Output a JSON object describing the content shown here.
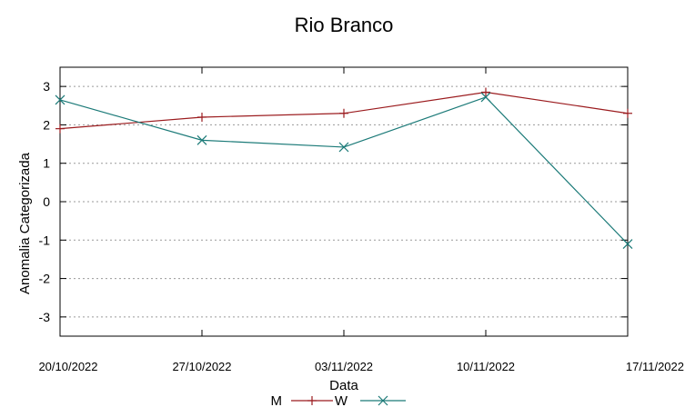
{
  "chart_data": {
    "type": "line",
    "title": "Rio Branco",
    "xlabel": "Data",
    "ylabel": "Anomalia Categorizada",
    "ylim": [
      -3.5,
      3.5
    ],
    "yticks": [
      "3",
      "2",
      "1",
      "0",
      "-1",
      "-2",
      "-3"
    ],
    "x": [
      "20/10/2022",
      "27/10/2022",
      "03/11/2022",
      "10/11/2022",
      "17/11/2022"
    ],
    "grid": true,
    "legend_position": "bottom",
    "series": [
      {
        "name": "M",
        "color": "#9b1b1e",
        "marker": "plus",
        "values": [
          1.9,
          2.2,
          2.3,
          2.85,
          2.3
        ]
      },
      {
        "name": "W",
        "color": "#1b7a78",
        "marker": "cross",
        "values": [
          2.65,
          1.6,
          1.42,
          2.72,
          -1.1
        ]
      }
    ]
  }
}
